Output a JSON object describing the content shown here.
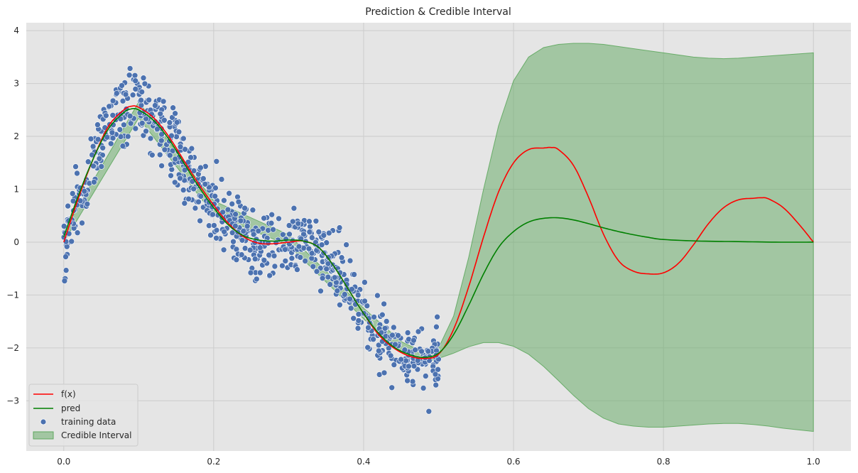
{
  "chart_data": {
    "type": "line",
    "title": "Prediction & Credible Interval",
    "xlabel": "",
    "ylabel": "",
    "xlim": [
      -0.05,
      1.05
    ],
    "ylim": [
      -3.95,
      4.15
    ],
    "xticks": [
      0.0,
      0.2,
      0.4,
      0.6,
      0.8,
      1.0
    ],
    "xtick_labels": [
      "0.0",
      "0.2",
      "0.4",
      "0.6",
      "0.8",
      "1.0"
    ],
    "yticks": [
      -3,
      -2,
      -1,
      0,
      1,
      2,
      3,
      4
    ],
    "ytick_labels": [
      "−3",
      "−2",
      "−1",
      "0",
      "1",
      "2",
      "3",
      "4"
    ],
    "grid": true,
    "legend_position": "lower-left",
    "colors": {
      "background": "#e5e5e5",
      "grid": "#cccccc",
      "f": "#ff0000",
      "pred": "#008000",
      "points": "#4c72b0",
      "band": "#5fa85f"
    },
    "series": [
      {
        "name": "f(x)",
        "kind": "line",
        "x": [
          0.0,
          0.02,
          0.04,
          0.06,
          0.08,
          0.09,
          0.1,
          0.12,
          0.14,
          0.16,
          0.18,
          0.2,
          0.22,
          0.24,
          0.26,
          0.28,
          0.3,
          0.32,
          0.34,
          0.36,
          0.38,
          0.4,
          0.42,
          0.44,
          0.46,
          0.48,
          0.5,
          0.52,
          0.54,
          0.56,
          0.58,
          0.6,
          0.62,
          0.64,
          0.65,
          0.66,
          0.68,
          0.7,
          0.72,
          0.74,
          0.76,
          0.78,
          0.8,
          0.82,
          0.84,
          0.86,
          0.88,
          0.9,
          0.92,
          0.93,
          0.94,
          0.96,
          0.98,
          1.0
        ],
        "y": [
          0.0,
          0.85,
          1.6,
          2.2,
          2.5,
          2.57,
          2.55,
          2.35,
          2.0,
          1.55,
          1.1,
          0.7,
          0.35,
          0.1,
          -0.02,
          -0.03,
          0.0,
          0.02,
          -0.1,
          -0.45,
          -0.9,
          -1.35,
          -1.75,
          -2.0,
          -2.15,
          -2.2,
          -2.12,
          -1.65,
          -0.85,
          0.1,
          0.95,
          1.5,
          1.75,
          1.78,
          1.79,
          1.75,
          1.45,
          0.85,
          0.15,
          -0.35,
          -0.55,
          -0.6,
          -0.58,
          -0.4,
          -0.05,
          0.35,
          0.65,
          0.8,
          0.83,
          0.84,
          0.82,
          0.65,
          0.35,
          0.0
        ]
      },
      {
        "name": "pred",
        "kind": "line",
        "x": [
          0.0,
          0.02,
          0.04,
          0.06,
          0.08,
          0.09,
          0.1,
          0.12,
          0.14,
          0.16,
          0.18,
          0.2,
          0.22,
          0.24,
          0.26,
          0.28,
          0.3,
          0.32,
          0.34,
          0.36,
          0.38,
          0.4,
          0.42,
          0.44,
          0.46,
          0.48,
          0.5,
          0.52,
          0.54,
          0.56,
          0.58,
          0.6,
          0.62,
          0.64,
          0.66,
          0.68,
          0.7,
          0.72,
          0.74,
          0.76,
          0.78,
          0.8,
          0.85,
          0.9,
          0.95,
          1.0
        ],
        "y": [
          0.1,
          0.9,
          1.6,
          2.15,
          2.45,
          2.52,
          2.5,
          2.3,
          1.95,
          1.5,
          1.05,
          0.65,
          0.32,
          0.12,
          0.04,
          0.02,
          0.04,
          0.02,
          -0.1,
          -0.45,
          -0.9,
          -1.35,
          -1.72,
          -1.98,
          -2.12,
          -2.18,
          -2.1,
          -1.75,
          -1.2,
          -0.6,
          -0.1,
          0.2,
          0.38,
          0.45,
          0.46,
          0.42,
          0.35,
          0.27,
          0.2,
          0.14,
          0.09,
          0.05,
          0.02,
          0.01,
          0.0,
          0.0
        ]
      },
      {
        "name": "Credible Interval",
        "kind": "band",
        "x": [
          0.0,
          0.1,
          0.2,
          0.3,
          0.4,
          0.45,
          0.48,
          0.5,
          0.52,
          0.54,
          0.56,
          0.58,
          0.6,
          0.62,
          0.64,
          0.66,
          0.68,
          0.7,
          0.72,
          0.74,
          0.76,
          0.78,
          0.8,
          0.82,
          0.84,
          0.86,
          0.88,
          0.9,
          0.92,
          0.94,
          0.96,
          0.98,
          1.0
        ],
        "upper": [
          0.2,
          2.65,
          0.78,
          0.14,
          -1.25,
          -1.88,
          -2.08,
          -2.0,
          -1.4,
          -0.3,
          1.0,
          2.2,
          3.05,
          3.5,
          3.68,
          3.74,
          3.76,
          3.76,
          3.74,
          3.7,
          3.66,
          3.62,
          3.58,
          3.54,
          3.5,
          3.48,
          3.47,
          3.48,
          3.5,
          3.52,
          3.54,
          3.56,
          3.58
        ],
        "lower": [
          0.0,
          2.35,
          0.52,
          -0.06,
          -1.45,
          -2.08,
          -2.28,
          -2.2,
          -2.1,
          -1.98,
          -1.9,
          -1.9,
          -1.97,
          -2.12,
          -2.35,
          -2.62,
          -2.9,
          -3.15,
          -3.33,
          -3.44,
          -3.48,
          -3.5,
          -3.5,
          -3.48,
          -3.46,
          -3.44,
          -3.43,
          -3.43,
          -3.45,
          -3.48,
          -3.52,
          -3.55,
          -3.58
        ]
      },
      {
        "name": "training data",
        "kind": "scatter",
        "count": 800,
        "x_range": [
          0.0,
          0.5
        ],
        "noise_sd": 0.32,
        "seed": 7
      }
    ]
  }
}
